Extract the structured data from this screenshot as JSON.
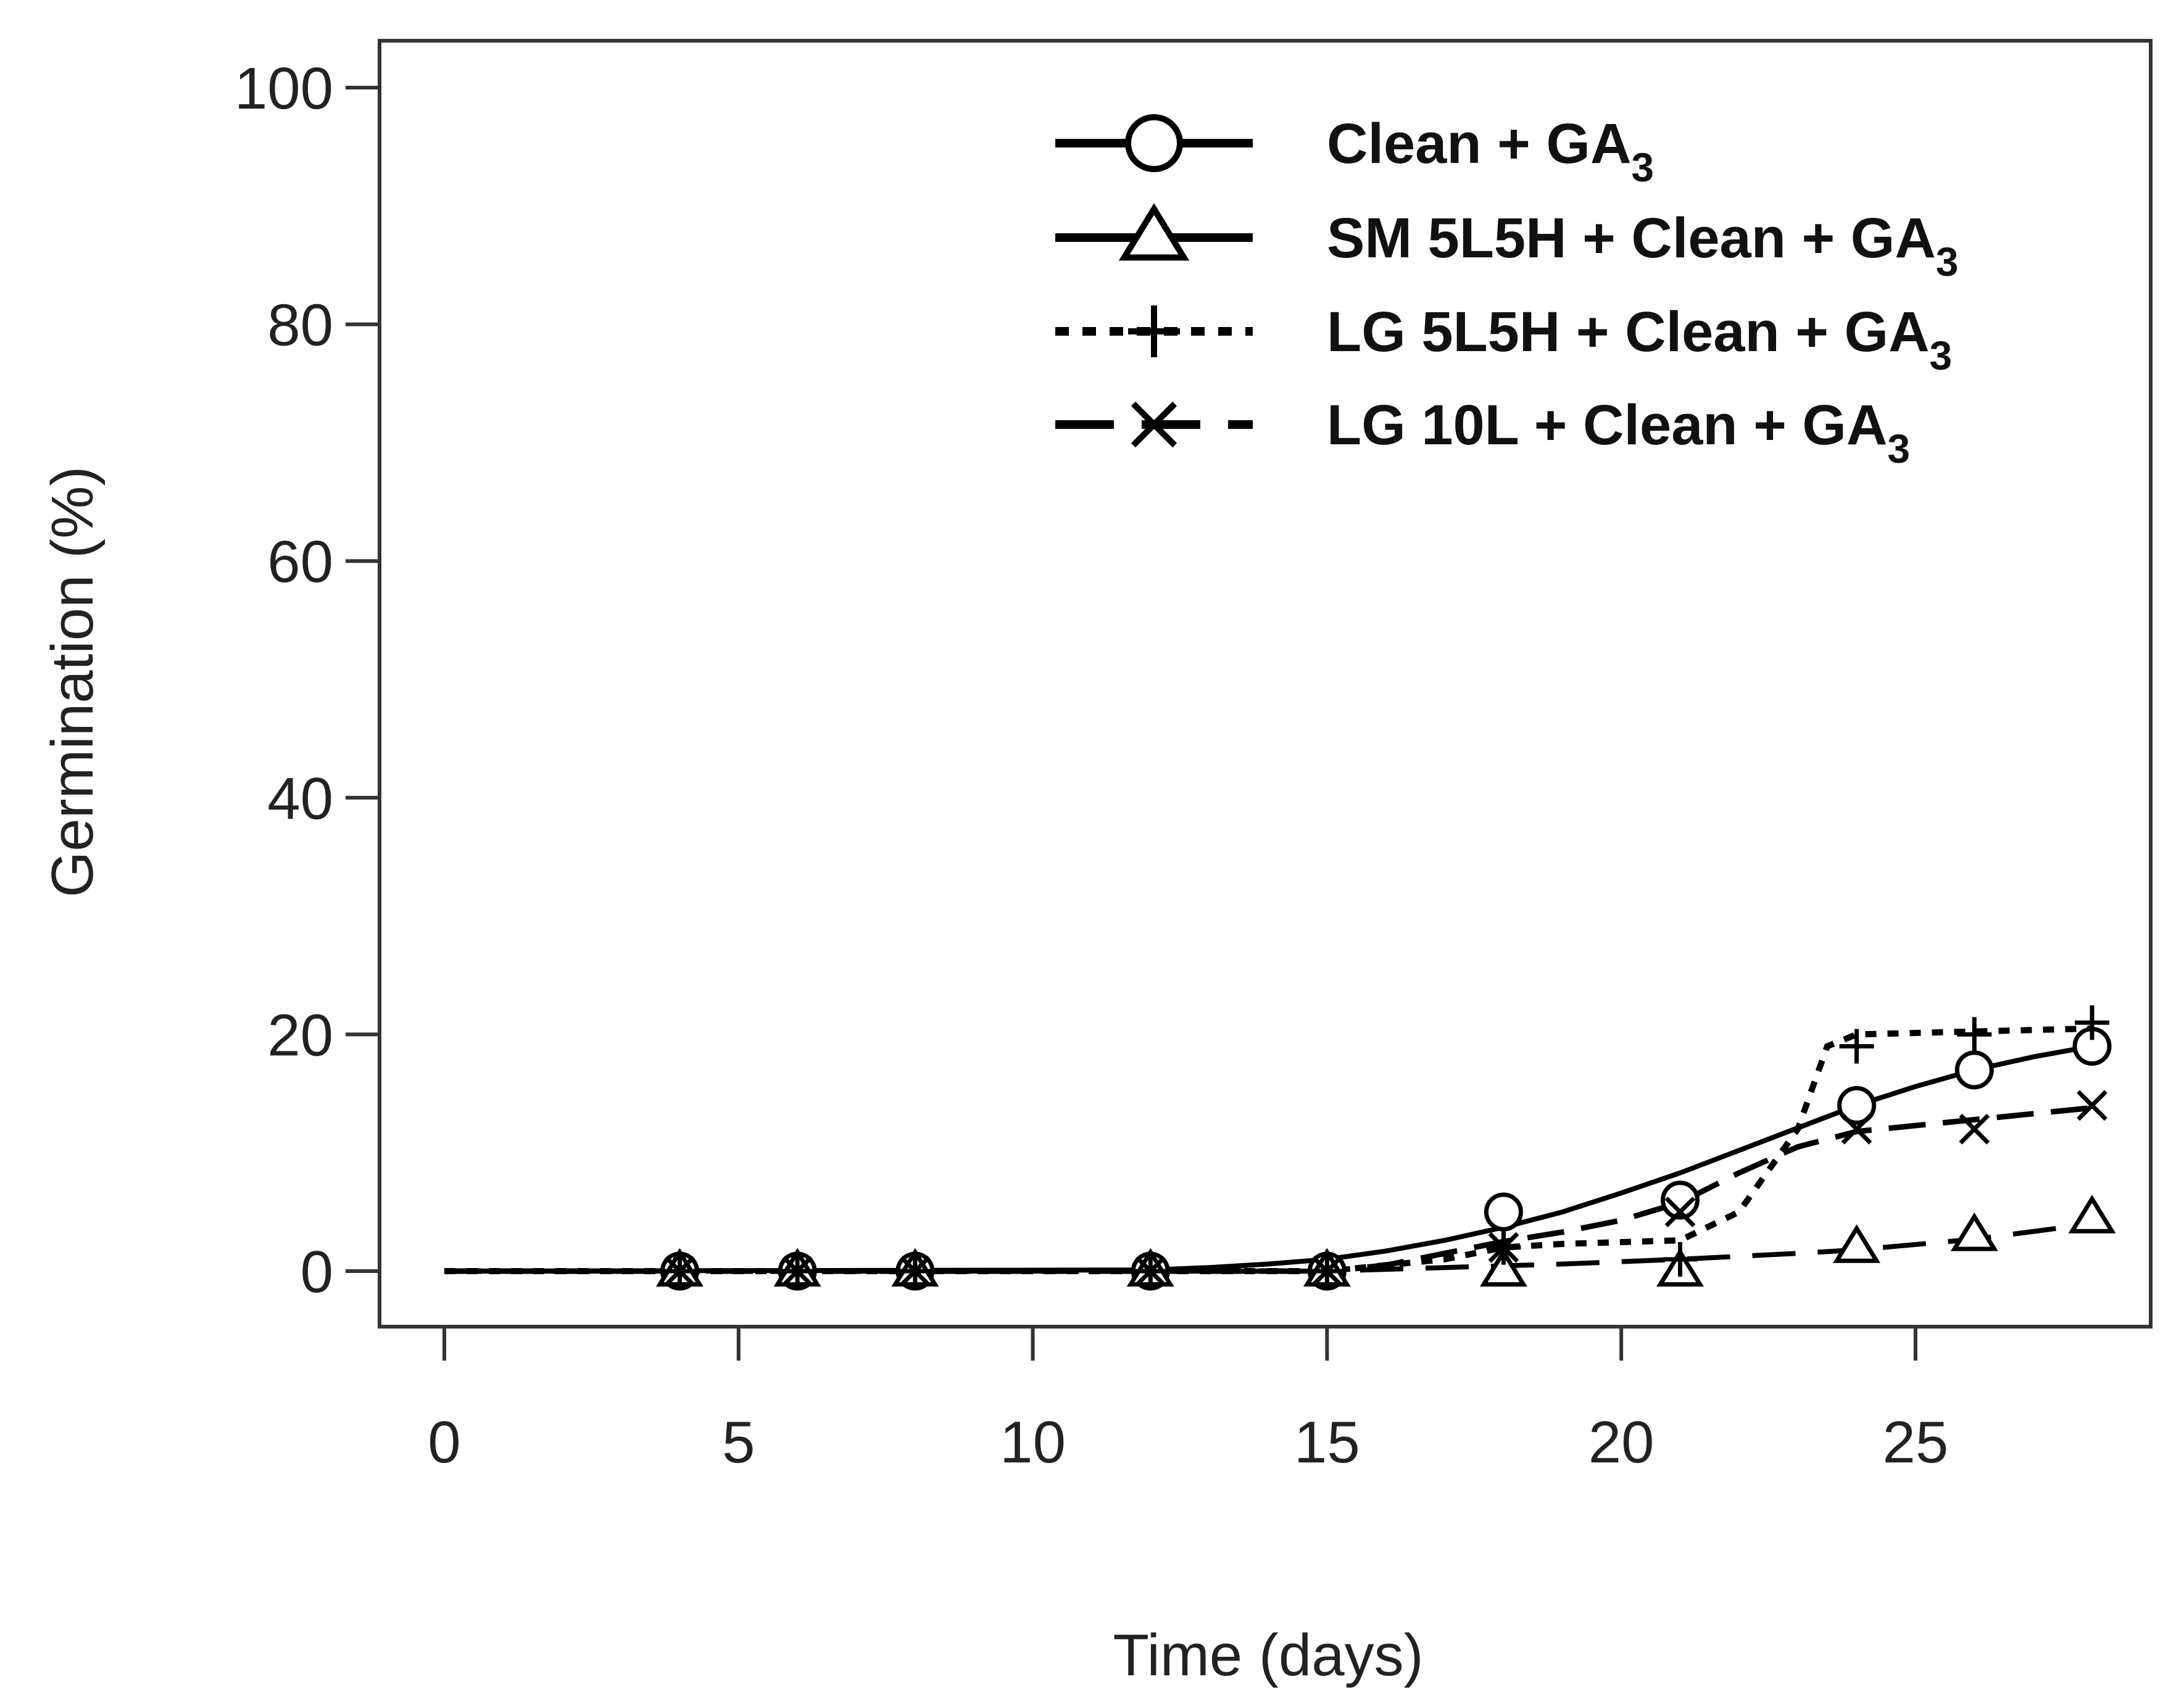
{
  "chart_data": {
    "type": "line",
    "title": "",
    "xlabel": "Time (days)",
    "ylabel": "Germination (%)",
    "xlim": [
      0,
      28
    ],
    "ylim": [
      0,
      100
    ],
    "xticks": [
      0,
      5,
      10,
      15,
      20,
      25
    ],
    "yticks": [
      0,
      20,
      40,
      60,
      80,
      100
    ],
    "grid": false,
    "legend_position": "top-right",
    "x": [
      4,
      6,
      8,
      12,
      15,
      18,
      21,
      24,
      26,
      28
    ],
    "series": [
      {
        "name": "Clean + GA",
        "name_subscript": "3",
        "marker": "circle",
        "line": "solid",
        "values": [
          0,
          0,
          0,
          0,
          0,
          5,
          6,
          14,
          17,
          19
        ],
        "fit": [
          [
            0,
            0
          ],
          [
            12,
            0.1
          ],
          [
            13,
            0.3
          ],
          [
            14,
            0.6
          ],
          [
            15,
            1
          ],
          [
            16,
            1.7
          ],
          [
            17,
            2.6
          ],
          [
            18,
            3.7
          ],
          [
            19,
            5
          ],
          [
            20,
            6.6
          ],
          [
            21,
            8.3
          ],
          [
            22,
            10.2
          ],
          [
            23,
            12.1
          ],
          [
            24,
            14
          ],
          [
            25,
            15.6
          ],
          [
            26,
            17
          ],
          [
            27,
            18.1
          ],
          [
            28,
            19
          ]
        ]
      },
      {
        "name": "SM 5L5H + Clean + GA",
        "name_subscript": "3",
        "marker": "triangle",
        "line": "longdash",
        "values": [
          0,
          0,
          0,
          0,
          0,
          0,
          0,
          2,
          3,
          4.5
        ],
        "fit": [
          [
            0,
            0
          ],
          [
            15,
            0
          ],
          [
            17,
            0.3
          ],
          [
            19,
            0.6
          ],
          [
            21,
            1
          ],
          [
            23,
            1.5
          ],
          [
            24,
            1.8
          ],
          [
            26,
            2.7
          ],
          [
            28,
            4
          ]
        ]
      },
      {
        "name": "LG 5L5H + Clean + GA",
        "name_subscript": "3",
        "marker": "plus",
        "line": "dotted",
        "values": [
          0,
          0,
          0,
          0,
          0,
          2,
          1,
          19,
          20,
          21
        ],
        "fit": [
          [
            0,
            0
          ],
          [
            15,
            0
          ],
          [
            17,
            1
          ],
          [
            18,
            2
          ],
          [
            19,
            2.3
          ],
          [
            21,
            2.6
          ],
          [
            22,
            5
          ],
          [
            23,
            12
          ],
          [
            23.5,
            19
          ],
          [
            24,
            20
          ],
          [
            28,
            20.5
          ]
        ]
      },
      {
        "name": "LG 10L + Clean + GA",
        "name_subscript": "3",
        "marker": "x",
        "line": "dashed",
        "values": [
          0,
          0,
          0,
          0,
          0,
          2,
          5,
          12,
          12,
          14
        ],
        "fit": [
          [
            0,
            0
          ],
          [
            15,
            0
          ],
          [
            16,
            0.5
          ],
          [
            17,
            1.5
          ],
          [
            18,
            2.5
          ],
          [
            19,
            3.3
          ],
          [
            20,
            4.3
          ],
          [
            21,
            5.8
          ],
          [
            22,
            8.3
          ],
          [
            23,
            10.5
          ],
          [
            24,
            11.8
          ],
          [
            26,
            12.8
          ],
          [
            28,
            13.8
          ]
        ]
      }
    ]
  }
}
